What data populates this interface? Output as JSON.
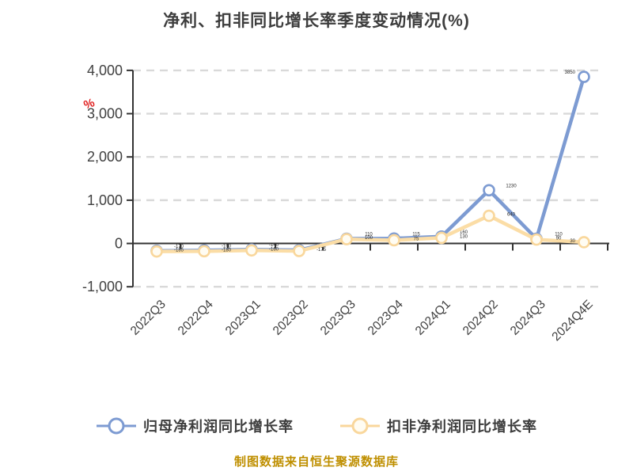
{
  "title": "净利、扣非同比增长率季度变动情况(%)",
  "footer": "制图数据来自恒生聚源数据库",
  "colors": {
    "title_text": "#3d3d3d",
    "axis_line": "#333333",
    "grid_line": "#d9d9d9",
    "tick_label": "#404040",
    "unit_label_red": "#e02020",
    "series_blue": "#7d9bd2",
    "series_blue_marker_fill": "#ffffff",
    "series_yellow": "#f9d79c",
    "series_yellow_line": "#fbdda6",
    "series_yellow_marker_fill": "#fffcf2",
    "data_label": "#2b2b2b",
    "footer_gold": "#bf8f00"
  },
  "legend": {
    "items": [
      {
        "label": "归母净利润同比增长率",
        "color": "#7d9bd2",
        "fill": "#ffffff"
      },
      {
        "label": "扣非净利润同比增长率",
        "color": "#f9d79c",
        "fill": "#fffcf2"
      }
    ]
  },
  "chart_data": {
    "type": "line",
    "title": "净利、扣非同比增长率季度变动情况(%)",
    "xlabel": "",
    "ylabel": "%",
    "ylim": [
      -1000,
      4000
    ],
    "grid": "dashed-horizontal",
    "legend_position": "bottom",
    "categories": [
      "2022Q3",
      "2022Q4",
      "2023Q1",
      "2023Q2",
      "2023Q3",
      "2023Q4",
      "2024Q1",
      "2024Q2",
      "2024Q3",
      "2024Q4E"
    ],
    "y_ticks": [
      {
        "value": 4000,
        "label": "4,000"
      },
      {
        "value": 3000,
        "label": "3,000"
      },
      {
        "value": 2000,
        "label": "2,000"
      },
      {
        "value": 1000,
        "label": "1,000"
      },
      {
        "value": 0,
        "label": "0"
      },
      {
        "value": -1000,
        "label": "-1,000"
      }
    ],
    "series": [
      {
        "name": "归母净利润同比增长率",
        "color": "#7d9bd2",
        "marker_fill": "#ffffff",
        "values": [
          -170,
          -160,
          -140,
          -155,
          110,
          115,
          160,
          1230,
          110,
          3850
        ]
      },
      {
        "name": "扣非净利润同比增长率",
        "color": "#f9d79c",
        "marker_fill": "#fffcf2",
        "values": [
          -185,
          -180,
          -160,
          -175,
          100,
          75,
          130,
          640,
          90,
          30
        ]
      }
    ]
  }
}
